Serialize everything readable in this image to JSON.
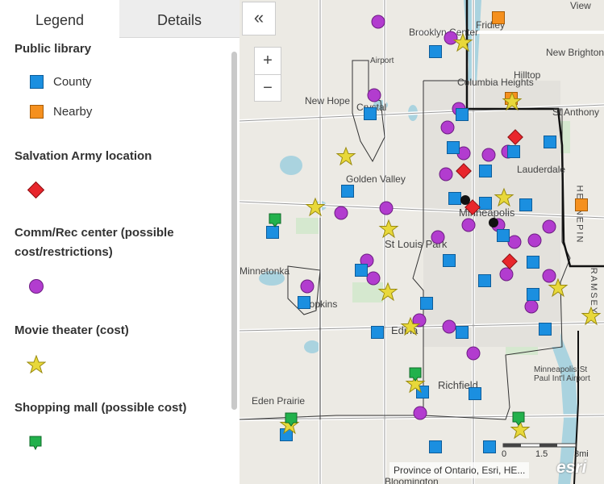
{
  "tabs": {
    "legend": "Legend",
    "details": "Details"
  },
  "legend": {
    "sections": [
      {
        "title": "Public library",
        "items": [
          {
            "label": "County",
            "symbol": "blue-square",
            "color": "#1b8fe0"
          },
          {
            "label": "Nearby",
            "symbol": "orange-square",
            "color": "#f5901e"
          }
        ]
      },
      {
        "title": "Salvation Army location",
        "items": [
          {
            "label": "",
            "symbol": "red-diamond",
            "color": "#e8262c"
          }
        ]
      },
      {
        "title": "Comm/Rec center (possible cost/restrictions)",
        "title_line1": "Comm/Rec center (possible",
        "title_line2": "cost/restrictions)",
        "items": [
          {
            "label": "",
            "symbol": "purple-circle",
            "color": "#b23ccf"
          }
        ]
      },
      {
        "title": "Movie theater (cost)",
        "items": [
          {
            "label": "",
            "symbol": "yellow-star",
            "color": "#e8d83a"
          }
        ]
      },
      {
        "title": "Shopping mall (possible cost)",
        "items": [
          {
            "label": "",
            "symbol": "green-pin",
            "color": "#22b14c"
          }
        ]
      }
    ]
  },
  "map": {
    "collapse_icon": "«",
    "zoom_in": "+",
    "zoom_out": "−",
    "attribution": "Province of Ontario, Esri, HE...",
    "logo": "esri",
    "scalebar_labels": [
      "0",
      "1.5",
      "3mi"
    ],
    "places": [
      "Brooklyn Center",
      "Fridley",
      "New Brighton",
      "Columbia Heights",
      "Hilltop",
      "St Anthony",
      "New Hope",
      "Crystal",
      "Lauderdale",
      "Golden Valley",
      "Minneapolis",
      "St Louis Park",
      "Minnetonka",
      "Hopkins",
      "Edina",
      "Richfield",
      "Minneapolis-St Paul Int'l Airport",
      "Eden Prairie",
      "Bloomington",
      "Airport",
      "View",
      "HENNEPIN",
      "RAMSEY"
    ]
  }
}
